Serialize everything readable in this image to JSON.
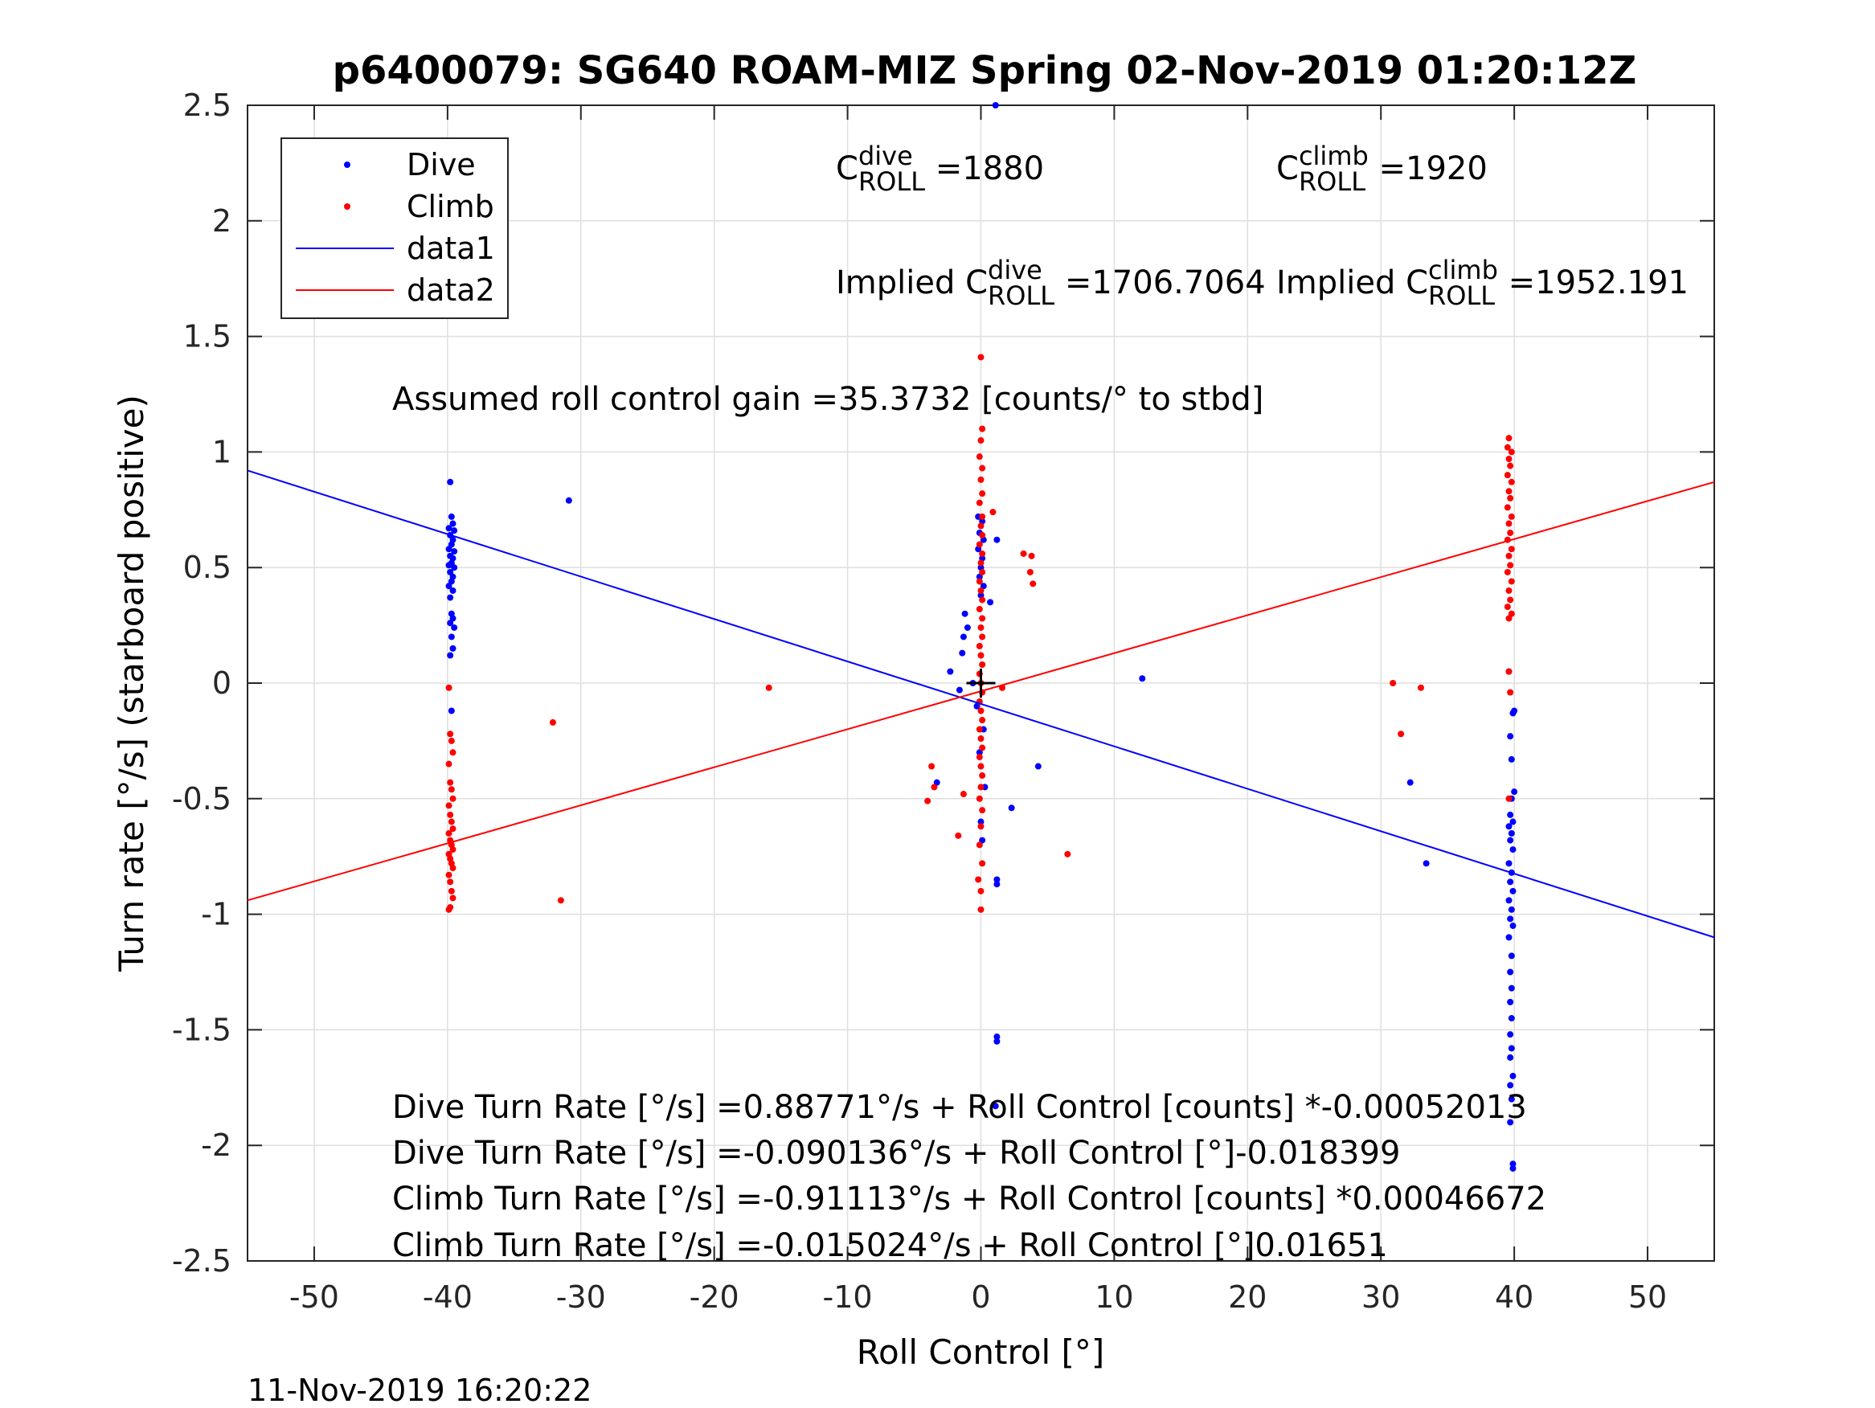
{
  "chart_data": {
    "type": "scatter",
    "title": "p6400079: SG640 ROAM-MIZ Spring 02-Nov-2019 01:20:12Z",
    "xlabel": "Roll Control [°]",
    "ylabel": "Turn rate [°/s] (starboard positive)",
    "xlim": [
      -55,
      55
    ],
    "ylim": [
      -2.5,
      2.5
    ],
    "xticks": [
      -50,
      -40,
      -30,
      -20,
      -10,
      0,
      10,
      20,
      30,
      40,
      50
    ],
    "yticks": [
      -2.5,
      -2,
      -1.5,
      -1,
      -0.5,
      0,
      0.5,
      1,
      1.5,
      2,
      2.5
    ],
    "grid": true,
    "legend_position": "top-left",
    "colors": {
      "dive": "#0000ff",
      "climb": "#ff0000",
      "marker": "#000000"
    },
    "legend": [
      {
        "label": "Dive",
        "kind": "marker",
        "color": "#0000ff"
      },
      {
        "label": "Climb",
        "kind": "marker",
        "color": "#ff0000"
      },
      {
        "label": "data1",
        "kind": "line",
        "color": "#0000ff"
      },
      {
        "label": "data2",
        "kind": "line",
        "color": "#ff0000"
      }
    ],
    "series": [
      {
        "name": "Dive",
        "kind": "scatter",
        "color": "#0000ff",
        "points": [
          [
            -39.8,
            0.87
          ],
          [
            -39.7,
            0.72
          ],
          [
            -39.6,
            0.69
          ],
          [
            -39.9,
            0.67
          ],
          [
            -39.5,
            0.66
          ],
          [
            -39.8,
            0.64
          ],
          [
            -39.6,
            0.62
          ],
          [
            -39.7,
            0.6
          ],
          [
            -39.9,
            0.58
          ],
          [
            -39.5,
            0.57
          ],
          [
            -39.8,
            0.55
          ],
          [
            -39.6,
            0.54
          ],
          [
            -39.7,
            0.52
          ],
          [
            -39.9,
            0.51
          ],
          [
            -39.5,
            0.5
          ],
          [
            -39.8,
            0.48
          ],
          [
            -39.6,
            0.46
          ],
          [
            -39.7,
            0.44
          ],
          [
            -39.9,
            0.42
          ],
          [
            -39.6,
            0.4
          ],
          [
            -39.8,
            0.37
          ],
          [
            -39.7,
            0.3
          ],
          [
            -39.6,
            0.28
          ],
          [
            -39.8,
            0.26
          ],
          [
            -39.5,
            0.24
          ],
          [
            -39.7,
            0.2
          ],
          [
            -39.6,
            0.15
          ],
          [
            -39.8,
            0.12
          ],
          [
            -39.7,
            -0.12
          ],
          [
            -30.9,
            0.79
          ],
          [
            -0.2,
            0.72
          ],
          [
            0.1,
            0.7
          ],
          [
            -0.1,
            0.65
          ],
          [
            0.2,
            0.62
          ],
          [
            -0.2,
            0.58
          ],
          [
            0.1,
            0.54
          ],
          [
            0.0,
            0.5
          ],
          [
            -0.1,
            0.46
          ],
          [
            0.2,
            0.42
          ],
          [
            0.0,
            0.38
          ],
          [
            1.2,
            0.62
          ],
          [
            0.7,
            0.35
          ],
          [
            -1.2,
            0.3
          ],
          [
            -1.0,
            0.24
          ],
          [
            -1.3,
            0.2
          ],
          [
            -1.4,
            0.13
          ],
          [
            -2.3,
            0.05
          ],
          [
            -0.6,
            0.0
          ],
          [
            -1.6,
            -0.03
          ],
          [
            -0.3,
            -0.1
          ],
          [
            0.2,
            -0.2
          ],
          [
            -0.1,
            -0.3
          ],
          [
            0.3,
            -0.45
          ],
          [
            -3.3,
            -0.43
          ],
          [
            0.0,
            -0.6
          ],
          [
            0.1,
            -0.68
          ],
          [
            2.3,
            -0.54
          ],
          [
            4.3,
            -0.36
          ],
          [
            1.2,
            -0.85
          ],
          [
            1.2,
            -0.87
          ],
          [
            1.2,
            -1.53
          ],
          [
            1.2,
            -1.55
          ],
          [
            1.1,
            -1.83
          ],
          [
            1.1,
            2.5
          ],
          [
            12.1,
            0.02
          ],
          [
            39.6,
            0.05
          ],
          [
            40.0,
            -0.12
          ],
          [
            39.9,
            -0.13
          ],
          [
            39.7,
            -0.23
          ],
          [
            39.8,
            -0.33
          ],
          [
            40.0,
            -0.47
          ],
          [
            39.8,
            -0.5
          ],
          [
            39.7,
            -0.57
          ],
          [
            39.9,
            -0.6
          ],
          [
            39.6,
            -0.62
          ],
          [
            39.8,
            -0.65
          ],
          [
            39.7,
            -0.68
          ],
          [
            39.9,
            -0.72
          ],
          [
            39.6,
            -0.78
          ],
          [
            39.8,
            -0.82
          ],
          [
            39.7,
            -0.86
          ],
          [
            39.9,
            -0.9
          ],
          [
            39.6,
            -0.94
          ],
          [
            39.8,
            -0.98
          ],
          [
            39.7,
            -1.02
          ],
          [
            39.9,
            -1.05
          ],
          [
            39.6,
            -1.1
          ],
          [
            39.8,
            -1.18
          ],
          [
            39.7,
            -1.25
          ],
          [
            39.8,
            -1.32
          ],
          [
            39.7,
            -1.38
          ],
          [
            39.8,
            -1.45
          ],
          [
            39.7,
            -1.52
          ],
          [
            39.8,
            -1.58
          ],
          [
            39.7,
            -1.62
          ],
          [
            39.9,
            -1.7
          ],
          [
            39.7,
            -1.74
          ],
          [
            39.8,
            -1.8
          ],
          [
            39.7,
            -1.9
          ],
          [
            39.9,
            -2.08
          ],
          [
            39.9,
            -2.1
          ],
          [
            32.2,
            -0.43
          ],
          [
            33.4,
            -0.78
          ]
        ]
      },
      {
        "name": "Climb",
        "kind": "scatter",
        "color": "#ff0000",
        "points": [
          [
            -39.9,
            -0.02
          ],
          [
            -39.8,
            -0.22
          ],
          [
            -39.7,
            -0.25
          ],
          [
            -39.6,
            -0.3
          ],
          [
            -39.9,
            -0.35
          ],
          [
            -39.8,
            -0.43
          ],
          [
            -39.7,
            -0.46
          ],
          [
            -39.6,
            -0.5
          ],
          [
            -39.9,
            -0.53
          ],
          [
            -39.8,
            -0.57
          ],
          [
            -39.7,
            -0.6
          ],
          [
            -39.6,
            -0.63
          ],
          [
            -39.9,
            -0.65
          ],
          [
            -39.8,
            -0.68
          ],
          [
            -39.7,
            -0.7
          ],
          [
            -39.6,
            -0.72
          ],
          [
            -39.9,
            -0.74
          ],
          [
            -39.8,
            -0.76
          ],
          [
            -39.7,
            -0.78
          ],
          [
            -39.6,
            -0.8
          ],
          [
            -39.9,
            -0.83
          ],
          [
            -39.8,
            -0.86
          ],
          [
            -39.7,
            -0.9
          ],
          [
            -39.6,
            -0.93
          ],
          [
            -39.8,
            -0.97
          ],
          [
            -39.9,
            -0.98
          ],
          [
            -32.1,
            -0.17
          ],
          [
            -31.5,
            -0.94
          ],
          [
            -15.9,
            -0.02
          ],
          [
            0.0,
            1.41
          ],
          [
            0.1,
            1.1
          ],
          [
            0.0,
            1.05
          ],
          [
            -0.1,
            0.98
          ],
          [
            0.1,
            0.93
          ],
          [
            0.0,
            0.88
          ],
          [
            0.1,
            0.82
          ],
          [
            -0.1,
            0.78
          ],
          [
            0.1,
            0.72
          ],
          [
            0.0,
            0.68
          ],
          [
            0.1,
            0.64
          ],
          [
            -0.1,
            0.6
          ],
          [
            0.1,
            0.56
          ],
          [
            0.0,
            0.52
          ],
          [
            0.1,
            0.48
          ],
          [
            -0.1,
            0.44
          ],
          [
            0.0,
            0.4
          ],
          [
            0.1,
            0.36
          ],
          [
            -0.1,
            0.32
          ],
          [
            0.1,
            0.28
          ],
          [
            0.0,
            0.24
          ],
          [
            0.1,
            0.2
          ],
          [
            -0.1,
            0.16
          ],
          [
            0.0,
            0.12
          ],
          [
            0.1,
            0.08
          ],
          [
            -0.1,
            0.04
          ],
          [
            0.0,
            0.0
          ],
          [
            0.1,
            -0.04
          ],
          [
            -0.1,
            -0.08
          ],
          [
            0.0,
            -0.12
          ],
          [
            0.1,
            -0.16
          ],
          [
            -0.1,
            -0.2
          ],
          [
            0.0,
            -0.24
          ],
          [
            0.1,
            -0.28
          ],
          [
            -0.1,
            -0.32
          ],
          [
            0.0,
            -0.36
          ],
          [
            0.1,
            -0.4
          ],
          [
            0.0,
            -0.45
          ],
          [
            -0.1,
            -0.5
          ],
          [
            0.1,
            -0.55
          ],
          [
            0.0,
            -0.62
          ],
          [
            -0.1,
            -0.7
          ],
          [
            0.1,
            -0.78
          ],
          [
            -0.2,
            -0.85
          ],
          [
            0.0,
            -0.9
          ],
          [
            0.0,
            -0.98
          ],
          [
            0.9,
            0.74
          ],
          [
            1.6,
            -0.02
          ],
          [
            3.2,
            0.56
          ],
          [
            3.8,
            0.55
          ],
          [
            3.7,
            0.48
          ],
          [
            3.9,
            0.43
          ],
          [
            6.5,
            -0.74
          ],
          [
            -3.7,
            -0.36
          ],
          [
            -3.5,
            -0.45
          ],
          [
            -4.0,
            -0.51
          ],
          [
            -1.7,
            -0.66
          ],
          [
            -1.3,
            -0.48
          ],
          [
            39.6,
            1.06
          ],
          [
            39.5,
            1.02
          ],
          [
            39.8,
            1.0
          ],
          [
            39.6,
            0.97
          ],
          [
            39.7,
            0.94
          ],
          [
            39.5,
            0.9
          ],
          [
            39.8,
            0.87
          ],
          [
            39.6,
            0.83
          ],
          [
            39.7,
            0.8
          ],
          [
            39.5,
            0.76
          ],
          [
            39.8,
            0.72
          ],
          [
            39.6,
            0.69
          ],
          [
            39.7,
            0.65
          ],
          [
            39.5,
            0.62
          ],
          [
            39.8,
            0.58
          ],
          [
            39.6,
            0.55
          ],
          [
            39.7,
            0.51
          ],
          [
            39.5,
            0.48
          ],
          [
            39.8,
            0.44
          ],
          [
            39.6,
            0.4
          ],
          [
            39.7,
            0.36
          ],
          [
            39.5,
            0.33
          ],
          [
            39.8,
            0.3
          ],
          [
            39.6,
            0.28
          ],
          [
            39.6,
            0.05
          ],
          [
            39.7,
            -0.04
          ],
          [
            39.6,
            -0.5
          ],
          [
            30.9,
            0.0
          ],
          [
            33.0,
            -0.02
          ],
          [
            31.5,
            -0.22
          ]
        ]
      },
      {
        "name": "data1",
        "kind": "line",
        "color": "#0000ff",
        "x": [
          -55,
          55
        ],
        "y": [
          0.92,
          -1.1
        ]
      },
      {
        "name": "data2",
        "kind": "line",
        "color": "#ff0000",
        "x": [
          -55,
          55
        ],
        "y": [
          -0.94,
          0.87
        ]
      },
      {
        "name": "origin",
        "kind": "plus",
        "color": "#000000",
        "points": [
          [
            0,
            0
          ]
        ]
      }
    ]
  },
  "annotations": {
    "c_dive": {
      "base": "C",
      "sup": "dive",
      "sub": "ROLL",
      "value": "=1880"
    },
    "c_climb": {
      "base": "C",
      "sup": "climb",
      "sub": "ROLL",
      "value": "=1920"
    },
    "implied_dive": {
      "prefix": "Implied C",
      "sup": "dive",
      "sub": "ROLL",
      "value": "=1706.7064"
    },
    "implied_climb": {
      "prefix": "Implied C",
      "sup": "climb",
      "sub": "ROLL",
      "value": "=1952.191"
    },
    "gain": "Assumed roll control gain =35.3732 [counts/° to stbd]",
    "fit_lines": [
      "Dive Turn Rate [°/s] =0.88771°/s + Roll Control [counts] *-0.00052013",
      "Dive Turn Rate [°/s] =-0.090136°/s + Roll Control [°]-0.018399",
      "Climb Turn Rate [°/s] =-0.91113°/s + Roll Control [counts] *0.00046672",
      "Climb Turn Rate [°/s] =-0.015024°/s + Roll Control [°]0.01651"
    ]
  },
  "timestamp": "11-Nov-2019 16:20:22"
}
